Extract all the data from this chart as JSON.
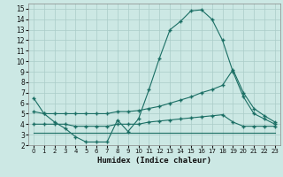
{
  "xlabel": "Humidex (Indice chaleur)",
  "bg_color": "#cce8e4",
  "grid_color": "#aaccc8",
  "line_color": "#1a6e64",
  "xlim": [
    -0.5,
    23.5
  ],
  "ylim": [
    2,
    15.5
  ],
  "xticks": [
    0,
    1,
    2,
    3,
    4,
    5,
    6,
    7,
    8,
    9,
    10,
    11,
    12,
    13,
    14,
    15,
    16,
    17,
    18,
    19,
    20,
    21,
    22,
    23
  ],
  "yticks": [
    2,
    3,
    4,
    5,
    6,
    7,
    8,
    9,
    10,
    11,
    12,
    13,
    14,
    15
  ],
  "line1_x": [
    0,
    1,
    2,
    3,
    4,
    5,
    6,
    7,
    8,
    9,
    10,
    11,
    12,
    13,
    14,
    15,
    16,
    17,
    18,
    19,
    20,
    21,
    22,
    23
  ],
  "line1_y": [
    6.5,
    5.0,
    4.2,
    3.6,
    2.8,
    2.3,
    2.3,
    2.3,
    4.4,
    3.3,
    4.5,
    7.3,
    10.3,
    13.0,
    13.8,
    14.8,
    14.9,
    14.0,
    12.0,
    9.0,
    6.6,
    5.0,
    4.5,
    4.0
  ],
  "line2_x": [
    0,
    1,
    2,
    3,
    4,
    5,
    6,
    7,
    8,
    9,
    10,
    11,
    12,
    13,
    14,
    15,
    16,
    17,
    18,
    19,
    20,
    21,
    22,
    23
  ],
  "line2_y": [
    5.2,
    5.0,
    5.0,
    5.0,
    5.0,
    5.0,
    5.0,
    5.0,
    5.2,
    5.2,
    5.3,
    5.5,
    5.7,
    6.0,
    6.3,
    6.6,
    7.0,
    7.3,
    7.7,
    9.2,
    7.0,
    5.5,
    4.8,
    4.2
  ],
  "line3_x": [
    0,
    1,
    2,
    3,
    4,
    5,
    6,
    7,
    8,
    9,
    10,
    11,
    12,
    13,
    14,
    15,
    16,
    17,
    18,
    19,
    20,
    21,
    22,
    23
  ],
  "line3_y": [
    4.0,
    4.0,
    4.0,
    4.0,
    3.8,
    3.8,
    3.8,
    3.8,
    4.0,
    4.0,
    4.0,
    4.2,
    4.3,
    4.4,
    4.5,
    4.6,
    4.7,
    4.8,
    4.9,
    4.2,
    3.8,
    3.8,
    3.8,
    3.8
  ],
  "line4_x": [
    0,
    23
  ],
  "line4_y": [
    3.2,
    3.2
  ]
}
